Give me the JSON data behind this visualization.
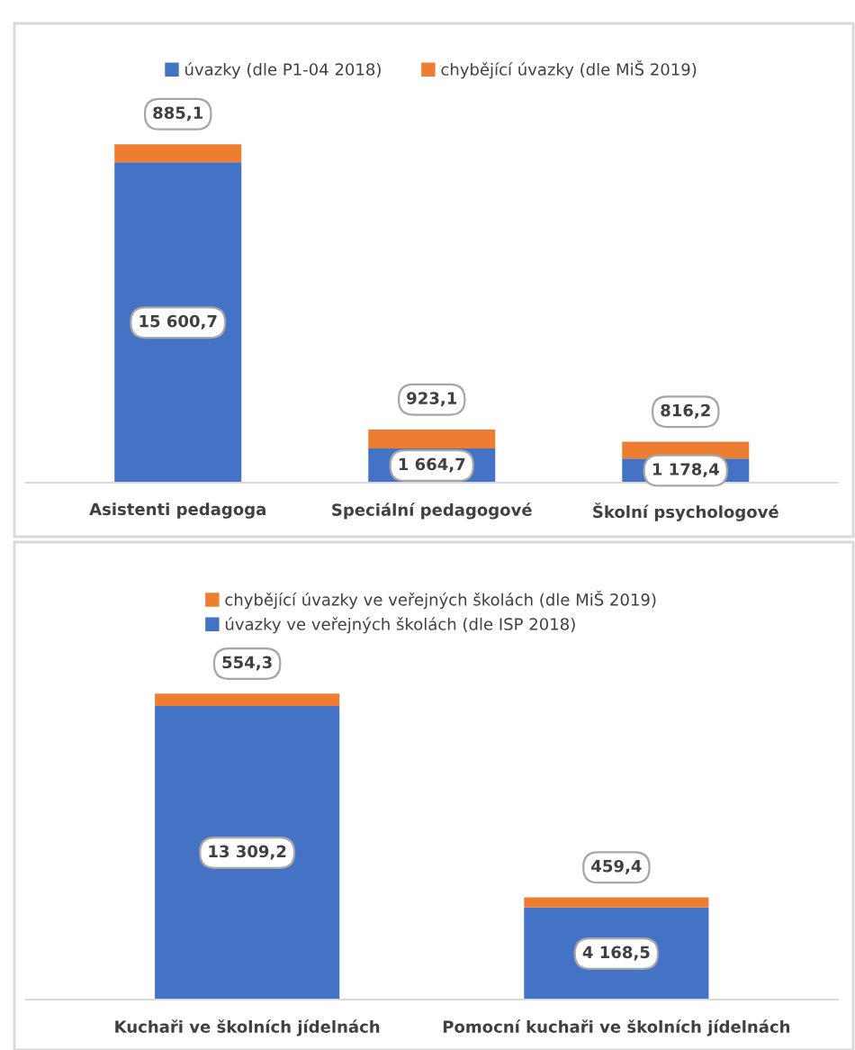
{
  "chart_data": [
    {
      "type": "bar",
      "stacked": true,
      "legend": "top",
      "categories": [
        "Asistenti pedagoga",
        "Speciální pedagogové",
        "Školní psychologové"
      ],
      "series": [
        {
          "name": "úvazky (dle P1-04 2018)",
          "color": "#4472c4",
          "values": [
            15600.7,
            1664.7,
            1178.4
          ],
          "value_labels": [
            "15 600,7",
            "1 664,7",
            "1 178,4"
          ]
        },
        {
          "name": "chybějící úvazky (dle MiŠ 2019)",
          "color": "#ed7d31",
          "values": [
            885.1,
            923.1,
            816.2
          ],
          "value_labels": [
            "885,1",
            "923,1",
            "816,2"
          ]
        }
      ]
    },
    {
      "type": "bar",
      "stacked": true,
      "legend": "top",
      "categories": [
        "Kuchaři ve školních jídelnách",
        "Pomocní kuchaři ve školních jídelnách"
      ],
      "series": [
        {
          "name": "úvazky ve veřejných školách (dle ISP 2018)",
          "color": "#4472c4",
          "values": [
            13309.2,
            4168.5
          ],
          "value_labels": [
            "13 309,2",
            "4 168,5"
          ]
        },
        {
          "name": "chybějící úvazky ve veřejných školách (dle MiŠ 2019)",
          "color": "#ed7d31",
          "values": [
            554.3,
            459.4
          ],
          "value_labels": [
            "554,3",
            "459,4"
          ]
        }
      ]
    }
  ]
}
